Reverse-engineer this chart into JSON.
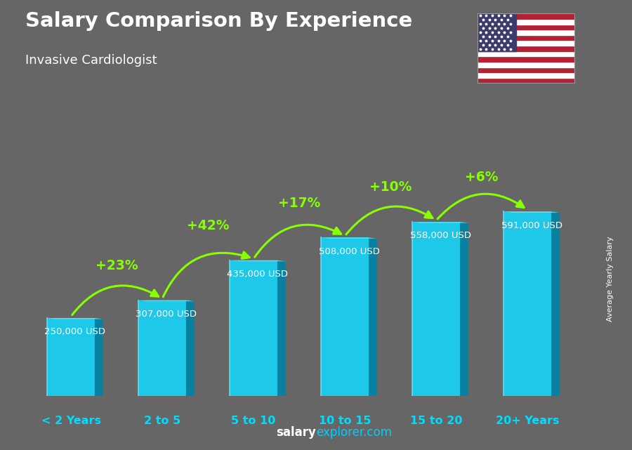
{
  "title": "Salary Comparison By Experience",
  "subtitle": "Invasive Cardiologist",
  "categories": [
    "< 2 Years",
    "2 to 5",
    "5 to 10",
    "10 to 15",
    "15 to 20",
    "20+ Years"
  ],
  "values": [
    250000,
    307000,
    435000,
    508000,
    558000,
    591000
  ],
  "salaries_text": [
    "250,000 USD",
    "307,000 USD",
    "435,000 USD",
    "508,000 USD",
    "558,000 USD",
    "591,000 USD"
  ],
  "pct_changes": [
    "+23%",
    "+42%",
    "+17%",
    "+10%",
    "+6%"
  ],
  "bar_color_light": "#1EC8E8",
  "bar_color_mid": "#0AAECC",
  "bar_color_dark": "#0880A0",
  "bar_color_top": "#5DDFEF",
  "bg_color": "#666666",
  "pct_color": "#88FF00",
  "salary_color": "#ffffff",
  "xlabel_color": "#00DDFF",
  "watermark_salary": "#ffffff",
  "watermark_explorer": "#00CCFF",
  "right_label": "Average Yearly Salary",
  "ylim": [
    0,
    750000
  ],
  "bar_width": 0.52,
  "side_depth": 0.09
}
